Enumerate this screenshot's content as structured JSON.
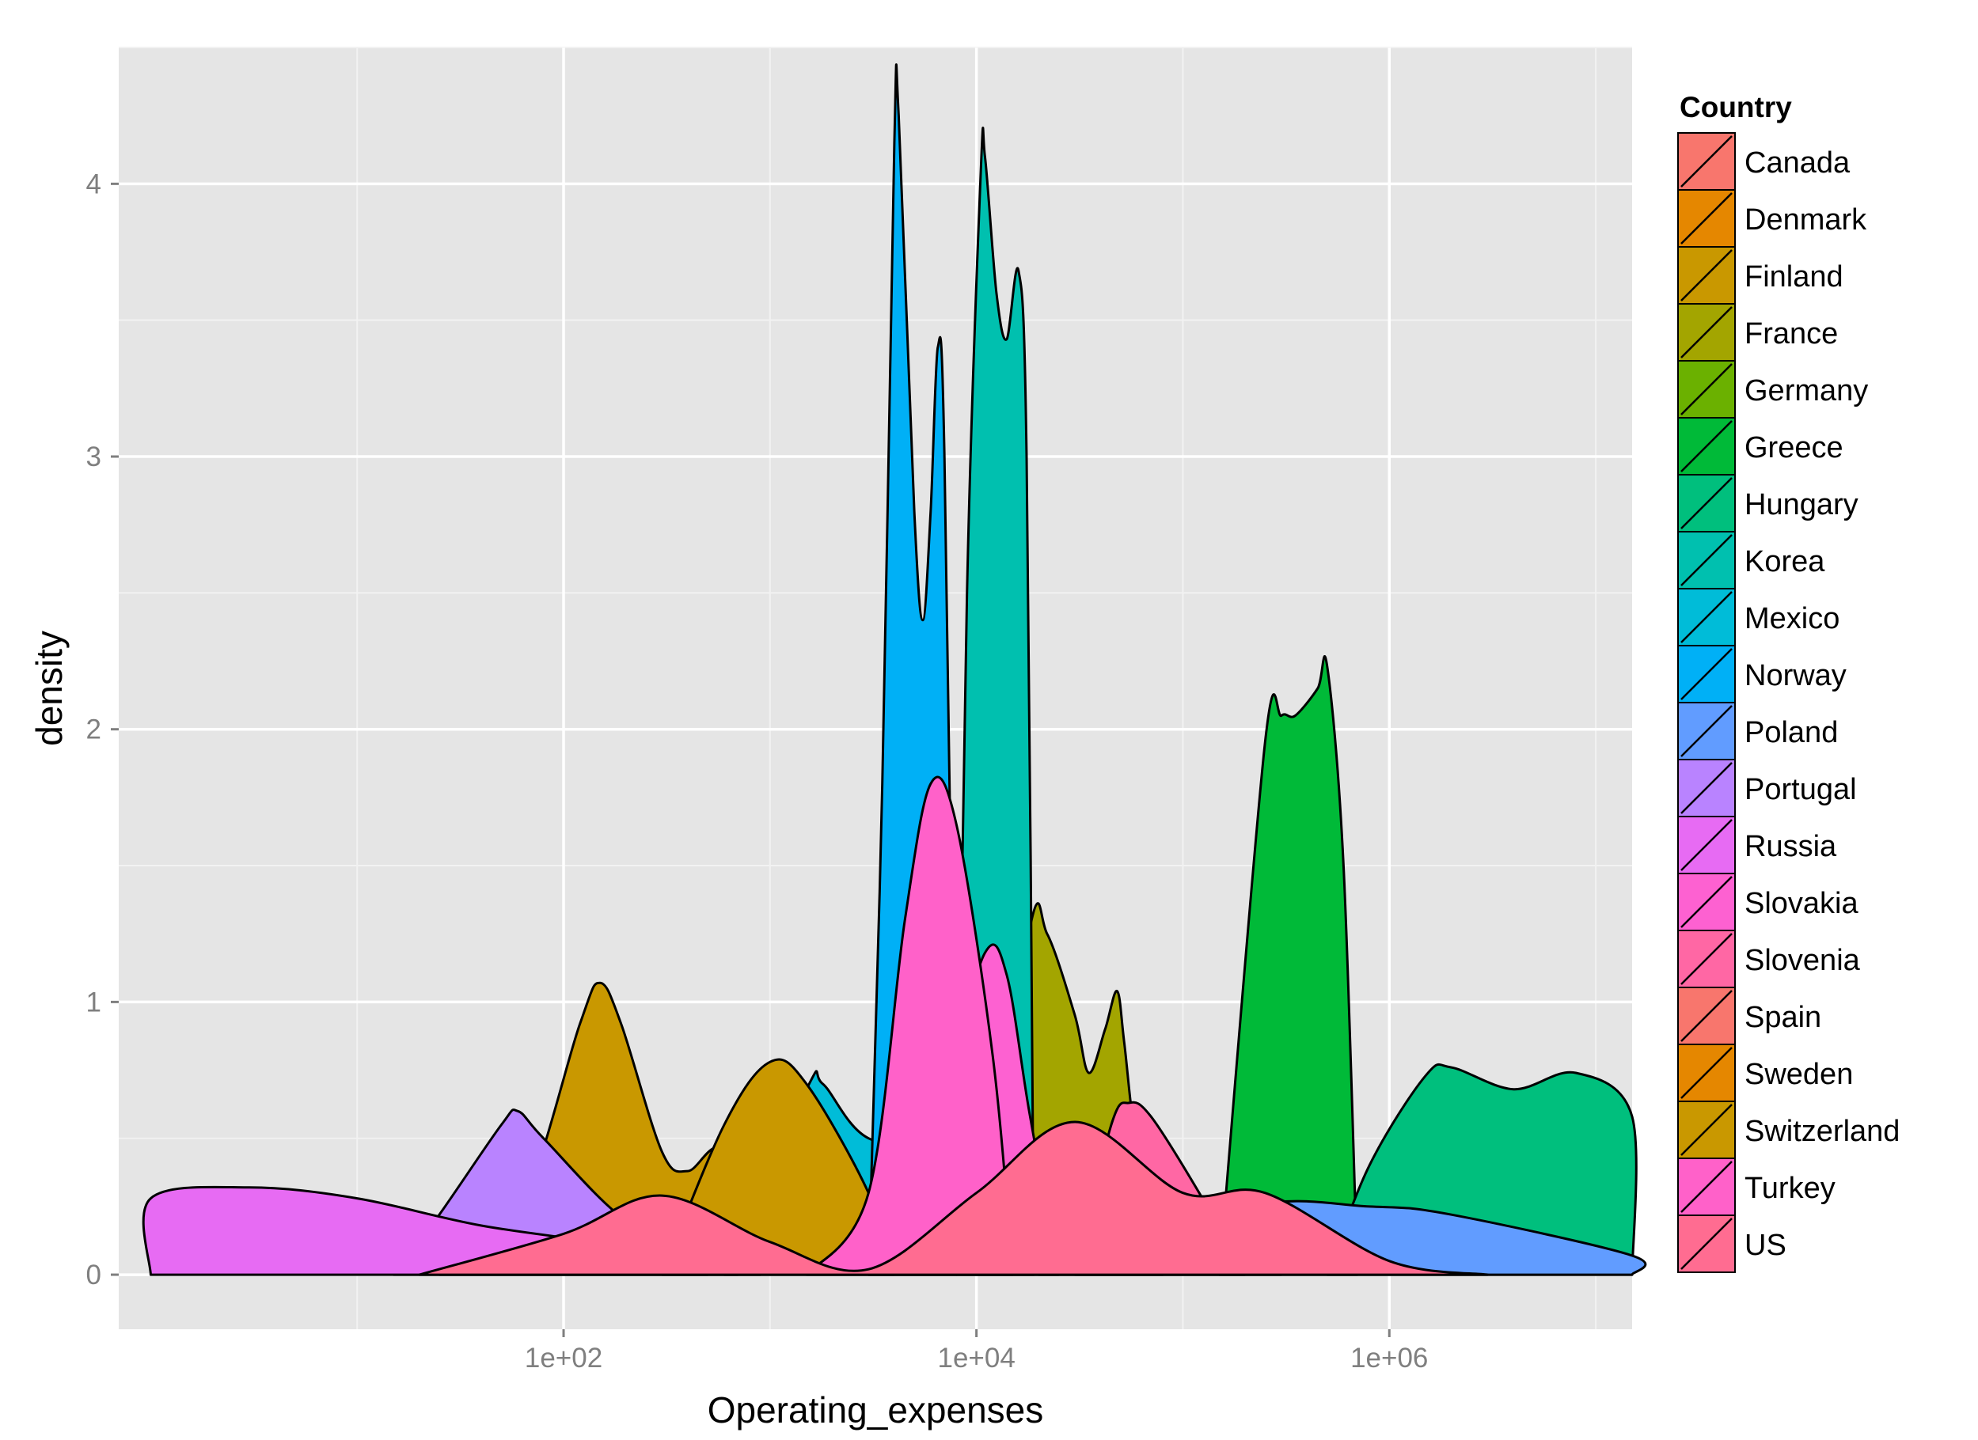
{
  "chart_data": {
    "type": "area",
    "xlabel": "Operating_expenses",
    "ylabel": "density",
    "x_scale": "log10",
    "xlim": [
      0.7,
      15000000
    ],
    "ylim": [
      -0.2,
      4.5
    ],
    "x_ticks": [
      {
        "value": 100,
        "label": "1e+02"
      },
      {
        "value": 10000,
        "label": "1e+04"
      },
      {
        "value": 1000000,
        "label": "1e+06"
      }
    ],
    "y_ticks": [
      {
        "value": 0,
        "label": "0"
      },
      {
        "value": 1,
        "label": "1"
      },
      {
        "value": 2,
        "label": "2"
      },
      {
        "value": 3,
        "label": "3"
      },
      {
        "value": 4,
        "label": "4"
      }
    ],
    "grid": true,
    "panel_background": "#e5e5e5",
    "legend": {
      "title": "Country",
      "position": "right"
    },
    "series": [
      {
        "name": "Canada",
        "color": "#F8766D",
        "points": []
      },
      {
        "name": "Denmark",
        "color": "#E58700",
        "points": []
      },
      {
        "name": "Finland",
        "color": "#C99800",
        "points": [
          [
            25,
            0
          ],
          [
            60,
            0.22
          ],
          [
            120,
            0.92
          ],
          [
            150,
            1.07
          ],
          [
            190,
            0.92
          ],
          [
            300,
            0.45
          ],
          [
            400,
            0.38
          ],
          [
            600,
            0.45
          ],
          [
            900,
            0
          ]
        ]
      },
      {
        "name": "France",
        "color": "#A3A500",
        "points": [
          [
            10000,
            0
          ],
          [
            18000,
            1.26
          ],
          [
            22000,
            1.25
          ],
          [
            30000,
            0.95
          ],
          [
            35000,
            0.74
          ],
          [
            42000,
            0.9
          ],
          [
            48000,
            1.04
          ],
          [
            52000,
            0.85
          ],
          [
            60000,
            0.45
          ],
          [
            80000,
            0
          ]
        ]
      },
      {
        "name": "Germany",
        "color": "#6BB100",
        "points": []
      },
      {
        "name": "Greece",
        "color": "#00BA38",
        "points": [
          [
            150000,
            0
          ],
          [
            250000,
            1.95
          ],
          [
            300000,
            2.05
          ],
          [
            350000,
            2.05
          ],
          [
            450000,
            2.15
          ],
          [
            500000,
            2.23
          ],
          [
            600000,
            1.5
          ],
          [
            700000,
            0
          ]
        ]
      },
      {
        "name": "Hungary",
        "color": "#00BF7D",
        "points": [
          [
            500000,
            0
          ],
          [
            800000,
            0.4
          ],
          [
            1500000,
            0.73
          ],
          [
            2000000,
            0.76
          ],
          [
            4000000,
            0.68
          ],
          [
            8000000,
            0.74
          ],
          [
            15000000,
            0.58
          ],
          [
            15000000,
            0
          ]
        ]
      },
      {
        "name": "Korea",
        "color": "#00C0AF",
        "points": [
          [
            8000,
            0
          ],
          [
            9000,
            2.5
          ],
          [
            10500,
            4.05
          ],
          [
            11000,
            4.1
          ],
          [
            12500,
            3.6
          ],
          [
            14000,
            3.43
          ],
          [
            16000,
            3.68
          ],
          [
            17500,
            3.0
          ],
          [
            19000,
            0
          ]
        ]
      },
      {
        "name": "Mexico",
        "color": "#00BCD8",
        "points": [
          [
            600,
            0
          ],
          [
            1500,
            0.68
          ],
          [
            1800,
            0.7
          ],
          [
            3000,
            0.5
          ],
          [
            8000,
            0.45
          ],
          [
            30000,
            0.35
          ],
          [
            100000,
            0.28
          ],
          [
            200000,
            0.27
          ],
          [
            300000,
            0
          ]
        ]
      },
      {
        "name": "Norway",
        "color": "#00B0F6",
        "points": [
          [
            3000,
            0
          ],
          [
            3500,
            1.8
          ],
          [
            4000,
            4.15
          ],
          [
            4200,
            4.25
          ],
          [
            5000,
            2.8
          ],
          [
            5500,
            2.4
          ],
          [
            6000,
            2.8
          ],
          [
            6500,
            3.4
          ],
          [
            7000,
            3.0
          ],
          [
            8000,
            0
          ]
        ]
      },
      {
        "name": "Poland",
        "color": "#619CFF",
        "points": [
          [
            20000,
            0
          ],
          [
            200000,
            0.25
          ],
          [
            800000,
            0.25
          ],
          [
            2000000,
            0.22
          ],
          [
            15000000,
            0.07
          ],
          [
            15000000,
            0
          ]
        ]
      },
      {
        "name": "Portugal",
        "color": "#B983FF",
        "points": [
          [
            15,
            0
          ],
          [
            25,
            0.22
          ],
          [
            50,
            0.55
          ],
          [
            60,
            0.6
          ],
          [
            80,
            0.5
          ],
          [
            200,
            0.2
          ],
          [
            400,
            0.15
          ],
          [
            700,
            0
          ]
        ]
      },
      {
        "name": "Russia",
        "color": "#E76BF3",
        "points": [
          [
            1,
            0
          ],
          [
            1,
            0.28
          ],
          [
            3,
            0.32
          ],
          [
            10,
            0.28
          ],
          [
            40,
            0.18
          ],
          [
            200,
            0.1
          ],
          [
            500,
            0
          ]
        ]
      },
      {
        "name": "Slovakia",
        "color": "#FD61D1",
        "points": [
          [
            3000,
            0
          ],
          [
            7000,
            0.7
          ],
          [
            11000,
            1.18
          ],
          [
            14000,
            1.1
          ],
          [
            18000,
            0.6
          ],
          [
            25000,
            0
          ]
        ]
      },
      {
        "name": "Slovenia",
        "color": "#FF67A4",
        "points": [
          [
            30000,
            0
          ],
          [
            45000,
            0.55
          ],
          [
            55000,
            0.63
          ],
          [
            70000,
            0.58
          ],
          [
            120000,
            0.3
          ],
          [
            200000,
            0
          ]
        ]
      },
      {
        "name": "Spain",
        "color": "#F8766D",
        "points": []
      },
      {
        "name": "Sweden",
        "color": "#E58700",
        "points": []
      },
      {
        "name": "Switzerland",
        "color": "#C99800",
        "points": [
          [
            300,
            0
          ],
          [
            600,
            0.55
          ],
          [
            1000,
            0.78
          ],
          [
            1500,
            0.7
          ],
          [
            3000,
            0.3
          ],
          [
            4000,
            0
          ]
        ]
      },
      {
        "name": "Turkey",
        "color": "#FF61C9",
        "points": [
          [
            1500,
            0
          ],
          [
            3000,
            0.3
          ],
          [
            4500,
            1.3
          ],
          [
            6000,
            1.8
          ],
          [
            8000,
            1.65
          ],
          [
            12000,
            0.8
          ],
          [
            15000,
            0
          ]
        ]
      },
      {
        "name": "US",
        "color": "#FF6C91",
        "points": [
          [
            20,
            0
          ],
          [
            100,
            0.15
          ],
          [
            300,
            0.29
          ],
          [
            1000,
            0.12
          ],
          [
            3000,
            0.02
          ],
          [
            10000,
            0.3
          ],
          [
            30000,
            0.56
          ],
          [
            100000,
            0.3
          ],
          [
            250000,
            0.3
          ],
          [
            1000000,
            0.05
          ],
          [
            3000000,
            0
          ]
        ]
      }
    ],
    "legend_entries": [
      {
        "label": "Canada",
        "color": "#F8766D"
      },
      {
        "label": "Denmark",
        "color": "#E58700"
      },
      {
        "label": "Finland",
        "color": "#C99800"
      },
      {
        "label": "France",
        "color": "#A3A500"
      },
      {
        "label": "Germany",
        "color": "#6BB100"
      },
      {
        "label": "Greece",
        "color": "#00BA38"
      },
      {
        "label": "Hungary",
        "color": "#00BF7D"
      },
      {
        "label": "Korea",
        "color": "#00C0AF"
      },
      {
        "label": "Mexico",
        "color": "#00BCD8"
      },
      {
        "label": "Norway",
        "color": "#00B0F6"
      },
      {
        "label": "Poland",
        "color": "#619CFF"
      },
      {
        "label": "Portugal",
        "color": "#B983FF"
      },
      {
        "label": "Russia",
        "color": "#E76BF3"
      },
      {
        "label": "Slovakia",
        "color": "#FD61D1"
      },
      {
        "label": "Slovenia",
        "color": "#FF67A4"
      },
      {
        "label": "Spain",
        "color": "#F8766D"
      },
      {
        "label": "Sweden",
        "color": "#E58700"
      },
      {
        "label": "Switzerland",
        "color": "#C99800"
      },
      {
        "label": "Turkey",
        "color": "#FF61C9"
      },
      {
        "label": "US",
        "color": "#FF6C91"
      }
    ]
  }
}
